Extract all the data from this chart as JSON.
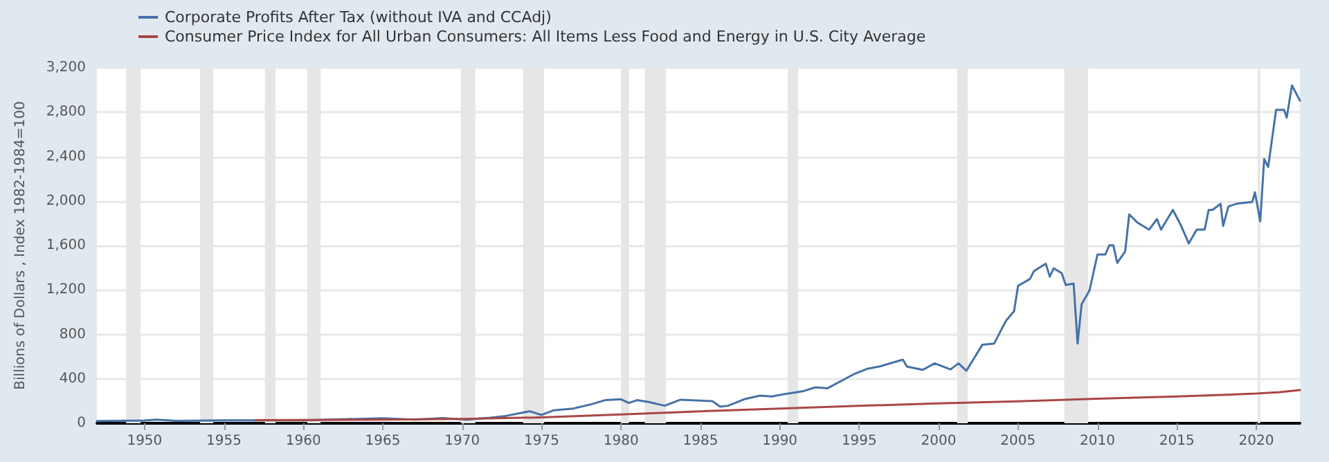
{
  "chart_data": {
    "type": "line",
    "ylabel": "Billions of Dollars , Index 1982-1984=100",
    "xlim": [
      "1947-01",
      "2022-10"
    ],
    "xticks": [
      "1950",
      "1955",
      "1960",
      "1965",
      "1970",
      "1975",
      "1980",
      "1985",
      "1990",
      "1995",
      "2000",
      "2005",
      "2010",
      "2015",
      "2020"
    ],
    "ylim": [
      0,
      3200
    ],
    "yticks": [
      0,
      400,
      800,
      {
        "value": 1200,
        "label": "1,200"
      },
      {
        "value": 1600,
        "label": "1,600"
      },
      {
        "value": 2000,
        "label": "2,000"
      },
      {
        "value": 2400,
        "label": "2,400"
      },
      {
        "value": 2800,
        "label": "2,800"
      },
      {
        "value": 3200,
        "label": "3,200"
      }
    ],
    "grid": "y",
    "legend": "top left",
    "line_style": "solid",
    "marker": "none",
    "bands": [
      {
        "axis": "x",
        "from": "1948-11",
        "to": "1949-10",
        "color": "#e6e6e6"
      },
      {
        "axis": "x",
        "from": "1953-07",
        "to": "1954-05",
        "color": "#e6e6e6"
      },
      {
        "axis": "x",
        "from": "1957-08",
        "to": "1958-04",
        "color": "#e6e6e6"
      },
      {
        "axis": "x",
        "from": "1960-04",
        "to": "1961-02",
        "color": "#e6e6e6"
      },
      {
        "axis": "x",
        "from": "1969-12",
        "to": "1970-11",
        "color": "#e6e6e6"
      },
      {
        "axis": "x",
        "from": "1973-11",
        "to": "1975-03",
        "color": "#e6e6e6"
      },
      {
        "axis": "x",
        "from": "1980-01",
        "to": "1980-07",
        "color": "#e6e6e6"
      },
      {
        "axis": "x",
        "from": "1981-07",
        "to": "1982-11",
        "color": "#e6e6e6"
      },
      {
        "axis": "x",
        "from": "1990-07",
        "to": "1991-03",
        "color": "#e6e6e6"
      },
      {
        "axis": "x",
        "from": "2001-03",
        "to": "2001-11",
        "color": "#e6e6e6"
      },
      {
        "axis": "x",
        "from": "2007-12",
        "to": "2009-06",
        "color": "#e6e6e6"
      },
      {
        "axis": "x",
        "from": "2020-02",
        "to": "2020-04",
        "color": "#e6e6e6"
      }
    ],
    "series": [
      {
        "name": "Corporate Profits After Tax (without IVA and CCAdj)",
        "color": "#4572a7",
        "x": [
          "1947-01",
          "1950-01",
          "1950-10",
          "1952-01",
          "1955-01",
          "1960-01",
          "1965-01",
          "1967-01",
          "1968-10",
          "1970-04",
          "1971-10",
          "1972-10",
          "1974-04",
          "1975-01",
          "1975-10",
          "1977-01",
          "1978-01",
          "1979-01",
          "1980-01",
          "1980-07",
          "1981-01",
          "1981-10",
          "1982-10",
          "1983-10",
          "1985-10",
          "1986-04",
          "1986-10",
          "1987-10",
          "1988-10",
          "1989-07",
          "1990-04",
          "1991-07",
          "1992-04",
          "1993-01",
          "1994-10",
          "1995-07",
          "1996-04",
          "1997-10",
          "1998-01",
          "1999-01",
          "1999-10",
          "2000-10",
          "2001-04",
          "2001-10",
          "2002-10",
          "2003-07",
          "2004-04",
          "2004-10",
          "2005-01",
          "2005-10",
          "2006-01",
          "2006-10",
          "2007-01",
          "2007-04",
          "2007-10",
          "2008-01",
          "2008-07",
          "2008-10",
          "2009-01",
          "2009-07",
          "2010-01",
          "2010-07",
          "2010-10",
          "2011-01",
          "2011-04",
          "2011-10",
          "2012-01",
          "2012-07",
          "2013-04",
          "2013-10",
          "2014-01",
          "2014-10",
          "2015-04",
          "2015-10",
          "2016-04",
          "2016-10",
          "2017-01",
          "2017-04",
          "2017-10",
          "2017-12",
          "2018-04",
          "2018-10",
          "2019-10",
          "2019-12",
          "2020-04",
          "2020-07",
          "2020-10",
          "2021-04",
          "2021-10",
          "2021-12",
          "2022-04",
          "2022-10"
        ],
        "values": [
          20,
          25,
          33,
          22,
          27,
          27,
          45,
          33,
          46,
          33,
          50,
          66,
          108,
          75,
          116,
          133,
          166,
          208,
          216,
          183,
          208,
          191,
          158,
          212,
          199,
          149,
          158,
          216,
          249,
          241,
          261,
          290,
          324,
          315,
          448,
          490,
          510,
          573,
          510,
          481,
          539,
          485,
          539,
          473,
          706,
          718,
          925,
          1008,
          1237,
          1299,
          1370,
          1436,
          1320,
          1395,
          1353,
          1245,
          1258,
          718,
          1071,
          1195,
          1519,
          1519,
          1602,
          1602,
          1444,
          1548,
          1880,
          1809,
          1743,
          1838,
          1743,
          1921,
          1784,
          1619,
          1743,
          1743,
          1921,
          1921,
          1976,
          1776,
          1951,
          1976,
          1992,
          2079,
          1818,
          2378,
          2307,
          2822,
          2822,
          2751,
          3041,
          2905
        ]
      },
      {
        "name": "Consumer Price Index for All Urban Consumers: All Items Less Food and Energy in U.S. City Average",
        "color": "#aa4643",
        "x": [
          "1957-01",
          "1960-01",
          "1965-01",
          "1970-01",
          "1975-01",
          "1980-01",
          "1985-01",
          "1990-01",
          "1995-01",
          "2000-01",
          "2005-01",
          "2010-01",
          "2015-01",
          "2020-01",
          "2021-07",
          "2022-10"
        ],
        "values": [
          28,
          30,
          32,
          39,
          53,
          80,
          108,
          132,
          157,
          179,
          197,
          221,
          241,
          267,
          280,
          299
        ]
      }
    ]
  }
}
